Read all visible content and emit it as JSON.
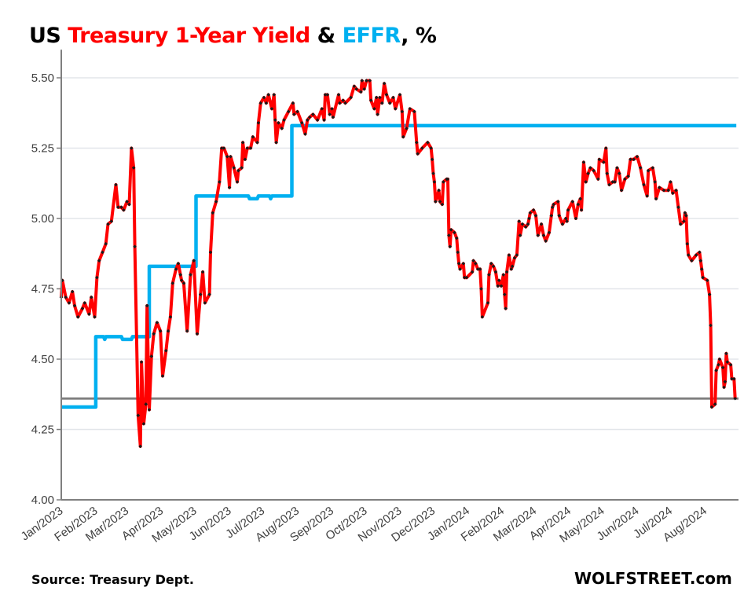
{
  "chart_data": {
    "type": "line",
    "title_parts": {
      "prefix": "US ",
      "series1": "Treasury 1-Year Yield",
      "joiner": " & ",
      "series2": "EFFR",
      "suffix": ", %"
    },
    "title": "US Treasury 1-Year Yield & EFFR, %",
    "xlabel": "",
    "ylabel": "",
    "x_units": "days since 2023-01-01",
    "xlim": [
      0,
      608
    ],
    "ylim": [
      4.0,
      5.6
    ],
    "yticks": [
      4.0,
      4.25,
      4.5,
      4.75,
      5.0,
      5.25,
      5.5
    ],
    "ytick_labels": [
      "4.00",
      "4.25",
      "4.50",
      "4.75",
      "5.00",
      "5.25",
      "5.50"
    ],
    "xticks": [
      0,
      31,
      59,
      90,
      120,
      151,
      181,
      212,
      243,
      273,
      304,
      334,
      365,
      396,
      425,
      456,
      486,
      517,
      547,
      578
    ],
    "xtick_labels": [
      "Jan/2023",
      "Feb/2023",
      "Mar/2023",
      "Apr/2023",
      "May/2023",
      "Jun/2023",
      "Jul/2023",
      "Aug/2023",
      "Sep/2023",
      "Oct/2023",
      "Nov/2023",
      "Dec/2023",
      "Jan/2024",
      "Feb/2024",
      "Mar/2024",
      "Apr/2024",
      "May/2024",
      "Jun/2024",
      "Jul/2024",
      "Aug/2024"
    ],
    "grid": true,
    "reference_line": {
      "value": 4.36,
      "color": "#808080"
    },
    "series": [
      {
        "name": "Treasury 1-Year Yield",
        "color": "#ff0000",
        "marker_color": "#1a1a1a",
        "points": [
          [
            2,
            4.72
          ],
          [
            3,
            4.78
          ],
          [
            6,
            4.72
          ],
          [
            9,
            4.7
          ],
          [
            12,
            4.74
          ],
          [
            14,
            4.69
          ],
          [
            17,
            4.65
          ],
          [
            21,
            4.68
          ],
          [
            23,
            4.7
          ],
          [
            27,
            4.66
          ],
          [
            29,
            4.72
          ],
          [
            32,
            4.65
          ],
          [
            34,
            4.79
          ],
          [
            36,
            4.85
          ],
          [
            39,
            4.88
          ],
          [
            42,
            4.91
          ],
          [
            44,
            4.98
          ],
          [
            47,
            4.99
          ],
          [
            51,
            5.12
          ],
          [
            53,
            5.04
          ],
          [
            56,
            5.04
          ],
          [
            58,
            5.03
          ],
          [
            61,
            5.06
          ],
          [
            63,
            5.05
          ],
          [
            65,
            5.25
          ],
          [
            67,
            5.18
          ],
          [
            68,
            4.9
          ],
          [
            71,
            4.3
          ],
          [
            73,
            4.19
          ],
          [
            74,
            4.49
          ],
          [
            76,
            4.27
          ],
          [
            78,
            4.34
          ],
          [
            79,
            4.69
          ],
          [
            81,
            4.32
          ],
          [
            83,
            4.51
          ],
          [
            85,
            4.59
          ],
          [
            88,
            4.63
          ],
          [
            91,
            4.6
          ],
          [
            93,
            4.44
          ],
          [
            96,
            4.53
          ],
          [
            98,
            4.6
          ],
          [
            100,
            4.65
          ],
          [
            102,
            4.77
          ],
          [
            105,
            4.82
          ],
          [
            107,
            4.84
          ],
          [
            109,
            4.8
          ],
          [
            110,
            4.78
          ],
          [
            112,
            4.77
          ],
          [
            115,
            4.6
          ],
          [
            118,
            4.8
          ],
          [
            121,
            4.85
          ],
          [
            124,
            4.59
          ],
          [
            127,
            4.73
          ],
          [
            129,
            4.81
          ],
          [
            131,
            4.7
          ],
          [
            135,
            4.73
          ],
          [
            136,
            4.88
          ],
          [
            138,
            5.02
          ],
          [
            141,
            5.06
          ],
          [
            144,
            5.13
          ],
          [
            146,
            5.25
          ],
          [
            148,
            5.25
          ],
          [
            151,
            5.22
          ],
          [
            153,
            5.11
          ],
          [
            154,
            5.22
          ],
          [
            157,
            5.18
          ],
          [
            160,
            5.13
          ],
          [
            161,
            5.17
          ],
          [
            164,
            5.18
          ],
          [
            165,
            5.27
          ],
          [
            167,
            5.21
          ],
          [
            169,
            5.25
          ],
          [
            172,
            5.25
          ],
          [
            174,
            5.29
          ],
          [
            178,
            5.27
          ],
          [
            179,
            5.34
          ],
          [
            181,
            5.41
          ],
          [
            184,
            5.43
          ],
          [
            186,
            5.41
          ],
          [
            188,
            5.44
          ],
          [
            191,
            5.39
          ],
          [
            193,
            5.44
          ],
          [
            194,
            5.35
          ],
          [
            195,
            5.27
          ],
          [
            197,
            5.34
          ],
          [
            200,
            5.32
          ],
          [
            202,
            5.35
          ],
          [
            206,
            5.38
          ],
          [
            210,
            5.41
          ],
          [
            211,
            5.37
          ],
          [
            214,
            5.38
          ],
          [
            218,
            5.34
          ],
          [
            221,
            5.3
          ],
          [
            223,
            5.35
          ],
          [
            225,
            5.36
          ],
          [
            228,
            5.37
          ],
          [
            232,
            5.35
          ],
          [
            236,
            5.39
          ],
          [
            238,
            5.35
          ],
          [
            239,
            5.44
          ],
          [
            241,
            5.44
          ],
          [
            243,
            5.37
          ],
          [
            245,
            5.39
          ],
          [
            246,
            5.36
          ],
          [
            251,
            5.44
          ],
          [
            252,
            5.41
          ],
          [
            255,
            5.42
          ],
          [
            257,
            5.41
          ],
          [
            262,
            5.43
          ],
          [
            265,
            5.47
          ],
          [
            267,
            5.46
          ],
          [
            271,
            5.45
          ],
          [
            272,
            5.49
          ],
          [
            274,
            5.46
          ],
          [
            276,
            5.49
          ],
          [
            279,
            5.49
          ],
          [
            280,
            5.42
          ],
          [
            283,
            5.39
          ],
          [
            285,
            5.43
          ],
          [
            286,
            5.37
          ],
          [
            288,
            5.43
          ],
          [
            290,
            5.41
          ],
          [
            292,
            5.48
          ],
          [
            294,
            5.44
          ],
          [
            297,
            5.41
          ],
          [
            300,
            5.43
          ],
          [
            302,
            5.39
          ],
          [
            306,
            5.44
          ],
          [
            308,
            5.38
          ],
          [
            309,
            5.29
          ],
          [
            312,
            5.32
          ],
          [
            315,
            5.39
          ],
          [
            319,
            5.38
          ],
          [
            321,
            5.27
          ],
          [
            322,
            5.23
          ],
          [
            326,
            5.25
          ],
          [
            331,
            5.27
          ],
          [
            334,
            5.25
          ],
          [
            335,
            5.21
          ],
          [
            336,
            5.16
          ],
          [
            337,
            5.13
          ],
          [
            338,
            5.06
          ],
          [
            341,
            5.1
          ],
          [
            342,
            5.06
          ],
          [
            344,
            5.05
          ],
          [
            345,
            5.13
          ],
          [
            348,
            5.14
          ],
          [
            349,
            5.14
          ],
          [
            350,
            4.94
          ],
          [
            351,
            4.9
          ],
          [
            352,
            4.96
          ],
          [
            355,
            4.95
          ],
          [
            357,
            4.93
          ],
          [
            358,
            4.88
          ],
          [
            359,
            4.84
          ],
          [
            360,
            4.82
          ],
          [
            363,
            4.84
          ],
          [
            364,
            4.79
          ],
          [
            366,
            4.79
          ],
          [
            371,
            4.81
          ],
          [
            372,
            4.85
          ],
          [
            374,
            4.84
          ],
          [
            376,
            4.82
          ],
          [
            378,
            4.82
          ],
          [
            379,
            4.75
          ],
          [
            380,
            4.65
          ],
          [
            385,
            4.7
          ],
          [
            386,
            4.8
          ],
          [
            388,
            4.84
          ],
          [
            390,
            4.83
          ],
          [
            392,
            4.81
          ],
          [
            394,
            4.76
          ],
          [
            395,
            4.78
          ],
          [
            397,
            4.76
          ],
          [
            399,
            4.8
          ],
          [
            400,
            4.73
          ],
          [
            401,
            4.68
          ],
          [
            402,
            4.81
          ],
          [
            404,
            4.87
          ],
          [
            406,
            4.82
          ],
          [
            407,
            4.83
          ],
          [
            409,
            4.86
          ],
          [
            411,
            4.87
          ],
          [
            413,
            4.99
          ],
          [
            414,
            4.94
          ],
          [
            416,
            4.98
          ],
          [
            419,
            4.97
          ],
          [
            421,
            4.98
          ],
          [
            422,
            5.0
          ],
          [
            423,
            5.02
          ],
          [
            426,
            5.03
          ],
          [
            428,
            5.01
          ],
          [
            430,
            4.94
          ],
          [
            433,
            4.98
          ],
          [
            435,
            4.94
          ],
          [
            437,
            4.92
          ],
          [
            440,
            4.95
          ],
          [
            442,
            5.01
          ],
          [
            443,
            5.04
          ],
          [
            444,
            5.05
          ],
          [
            448,
            5.06
          ],
          [
            449,
            5.01
          ],
          [
            452,
            4.98
          ],
          [
            455,
            5.0
          ],
          [
            456,
            4.99
          ],
          [
            457,
            5.03
          ],
          [
            461,
            5.06
          ],
          [
            464,
            5.0
          ],
          [
            466,
            5.05
          ],
          [
            468,
            5.07
          ],
          [
            469,
            5.03
          ],
          [
            471,
            5.2
          ],
          [
            473,
            5.13
          ],
          [
            475,
            5.16
          ],
          [
            477,
            5.18
          ],
          [
            480,
            5.17
          ],
          [
            484,
            5.14
          ],
          [
            485,
            5.21
          ],
          [
            489,
            5.2
          ],
          [
            491,
            5.25
          ],
          [
            492,
            5.16
          ],
          [
            494,
            5.12
          ],
          [
            497,
            5.13
          ],
          [
            499,
            5.13
          ],
          [
            501,
            5.18
          ],
          [
            503,
            5.16
          ],
          [
            505,
            5.1
          ],
          [
            508,
            5.14
          ],
          [
            511,
            5.15
          ],
          [
            513,
            5.21
          ],
          [
            516,
            5.21
          ],
          [
            519,
            5.22
          ],
          [
            522,
            5.18
          ],
          [
            525,
            5.12
          ],
          [
            528,
            5.08
          ],
          [
            529,
            5.17
          ],
          [
            533,
            5.18
          ],
          [
            535,
            5.13
          ],
          [
            536,
            5.07
          ],
          [
            539,
            5.11
          ],
          [
            543,
            5.1
          ],
          [
            547,
            5.1
          ],
          [
            549,
            5.13
          ],
          [
            551,
            5.09
          ],
          [
            554,
            5.1
          ],
          [
            556,
            5.04
          ],
          [
            558,
            4.98
          ],
          [
            561,
            4.99
          ],
          [
            562,
            5.02
          ],
          [
            563,
            5.01
          ],
          [
            564,
            4.91
          ],
          [
            565,
            4.87
          ],
          [
            568,
            4.85
          ],
          [
            572,
            4.87
          ],
          [
            575,
            4.88
          ],
          [
            576,
            4.85
          ],
          [
            577,
            4.82
          ],
          [
            578,
            4.79
          ],
          [
            582,
            4.78
          ],
          [
            584,
            4.73
          ],
          [
            585,
            4.62
          ],
          [
            586,
            4.33
          ],
          [
            589,
            4.34
          ],
          [
            590,
            4.46
          ],
          [
            592,
            4.48
          ],
          [
            593,
            4.5
          ],
          [
            596,
            4.47
          ],
          [
            597,
            4.4
          ],
          [
            598,
            4.42
          ],
          [
            599,
            4.52
          ],
          [
            600,
            4.49
          ],
          [
            603,
            4.48
          ],
          [
            604,
            4.43
          ],
          [
            606,
            4.43
          ],
          [
            607,
            4.36
          ]
        ]
      },
      {
        "name": "EFFR",
        "color": "#00b0f0",
        "step": true,
        "points": [
          [
            0,
            4.33
          ],
          [
            33,
            4.33
          ],
          [
            33,
            4.58
          ],
          [
            40,
            4.58
          ],
          [
            41,
            4.57
          ],
          [
            42,
            4.58
          ],
          [
            56,
            4.58
          ],
          [
            57,
            4.57
          ],
          [
            65,
            4.57
          ],
          [
            66,
            4.58
          ],
          [
            81,
            4.58
          ],
          [
            81,
            4.83
          ],
          [
            123,
            4.83
          ],
          [
            123,
            5.08
          ],
          [
            170,
            5.08
          ],
          [
            171,
            5.07
          ],
          [
            178,
            5.07
          ],
          [
            179,
            5.08
          ],
          [
            189,
            5.08
          ],
          [
            190,
            5.07
          ],
          [
            191,
            5.08
          ],
          [
            209,
            5.08
          ],
          [
            209,
            5.33
          ],
          [
            608,
            5.33
          ]
        ]
      }
    ]
  },
  "footer": {
    "source": "Source: Treasury Dept.",
    "brand": "WOLFSTREET.com"
  }
}
